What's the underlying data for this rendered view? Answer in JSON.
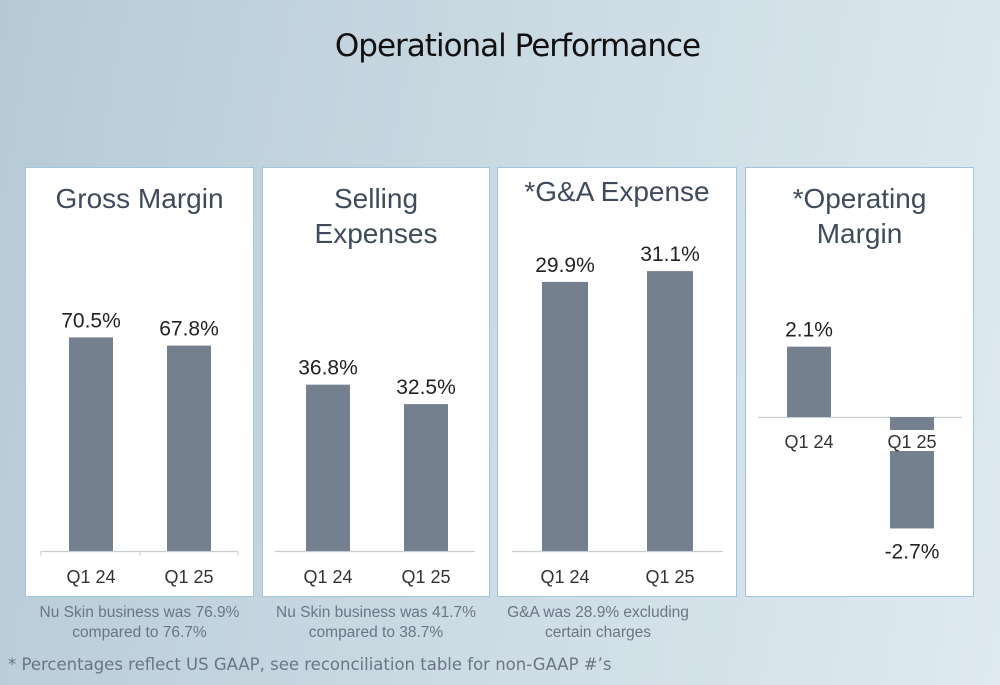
{
  "page": {
    "title": "Operational Performance",
    "footnote": "* Percentages reflect US GAAP, see reconciliation table for non-GAAP #’s"
  },
  "colors": {
    "bar": "#75808f",
    "panel_border": "#9fc6dd",
    "axis": "#c8cdd3"
  },
  "chart_data": [
    {
      "type": "bar",
      "title": "Gross Margin",
      "categories": [
        "Q1 24",
        "Q1 25"
      ],
      "values": [
        70.5,
        67.8
      ],
      "labels": [
        "70.5%",
        "67.8%"
      ],
      "note": "Nu Skin business was 76.9%\ncompared to 76.7%"
    },
    {
      "type": "bar",
      "title": "Selling\nExpenses",
      "categories": [
        "Q1 24",
        "Q1 25"
      ],
      "values": [
        36.8,
        32.5
      ],
      "labels": [
        "36.8%",
        "32.5%"
      ],
      "note": "Nu Skin business was 41.7%\ncompared to 38.7%"
    },
    {
      "type": "bar",
      "title": "*G&A Expense",
      "categories": [
        "Q1 24",
        "Q1 25"
      ],
      "values": [
        29.9,
        31.1
      ],
      "labels": [
        "29.9%",
        "31.1%"
      ],
      "note": "G&A was 28.9% excluding\ncertain charges"
    },
    {
      "type": "bar",
      "title": "*Operating\nMargin",
      "categories": [
        "Q1 24",
        "Q1 25"
      ],
      "values": [
        2.1,
        -2.7
      ],
      "labels": [
        "2.1%",
        "-2.7%"
      ],
      "note": ""
    }
  ]
}
